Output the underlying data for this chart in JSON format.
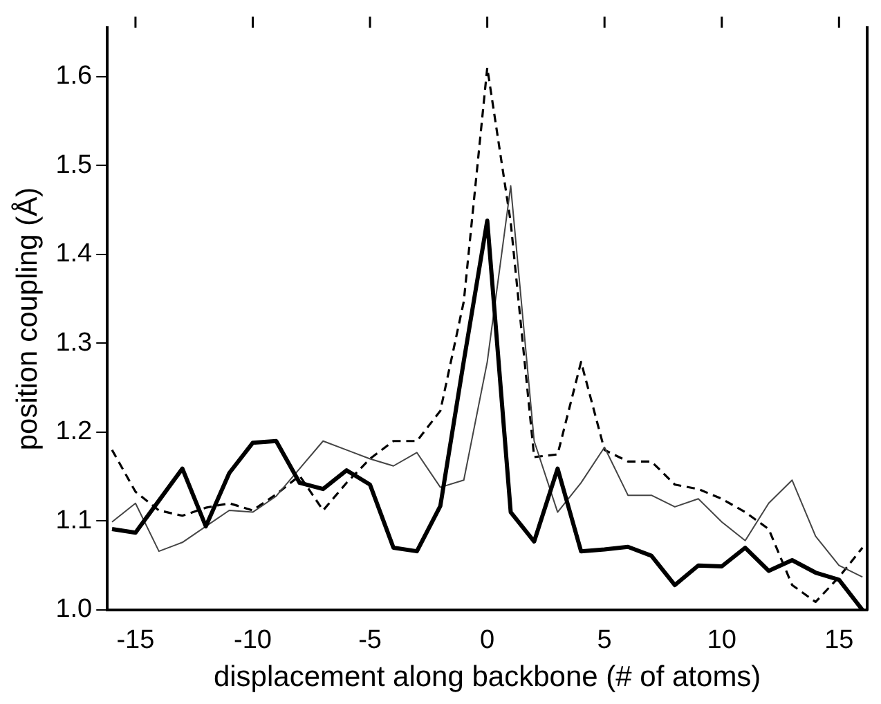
{
  "chart_data": {
    "type": "line",
    "xlabel": "displacement along backbone (# of atoms)",
    "ylabel": "position coupling (Å)",
    "x": [
      -16,
      -15,
      -14,
      -13,
      -12,
      -11,
      -10,
      -9,
      -8,
      -7,
      -6,
      -5,
      -4,
      -3,
      -2,
      -1,
      0,
      1,
      2,
      3,
      4,
      5,
      6,
      7,
      8,
      9,
      10,
      11,
      12,
      13,
      14,
      15,
      16
    ],
    "xlim": [
      -16.2,
      16.2
    ],
    "xticks": [
      -15,
      -10,
      -5,
      0,
      5,
      10,
      15
    ],
    "ylim": [
      1.0,
      1.655
    ],
    "yticks": [
      {
        "value": 1.0,
        "label": "1.0"
      },
      1.1,
      1.2,
      1.3,
      1.4,
      1.5,
      1.6
    ],
    "grid": false,
    "legend": false,
    "marker": "none",
    "series": [
      {
        "color": "#000000",
        "line_style": "solid",
        "values": [
          1.091,
          1.087,
          1.123,
          1.159,
          1.094,
          1.154,
          1.188,
          1.19,
          1.143,
          1.136,
          1.157,
          1.141,
          1.07,
          1.066,
          1.117,
          1.28,
          1.438,
          1.11,
          1.077,
          1.159,
          1.066,
          1.068,
          1.071,
          1.061,
          1.028,
          1.05,
          1.049,
          1.07,
          1.044,
          1.056,
          1.042,
          1.034,
          1.0
        ]
      },
      {
        "color": "#444444",
        "line_style": "solid",
        "values": [
          1.099,
          1.12,
          1.066,
          1.076,
          1.094,
          1.112,
          1.11,
          1.128,
          1.159,
          1.19,
          1.18,
          1.17,
          1.162,
          1.177,
          1.138,
          1.146,
          1.279,
          1.477,
          1.19,
          1.11,
          1.143,
          1.183,
          1.129,
          1.129,
          1.116,
          1.125,
          1.099,
          1.078,
          1.12,
          1.146,
          1.083,
          1.05,
          1.037
        ]
      },
      {
        "color": "#000000",
        "line_style": "dashed",
        "values": [
          1.18,
          1.133,
          1.112,
          1.106,
          1.115,
          1.12,
          1.112,
          1.13,
          1.151,
          1.112,
          1.143,
          1.17,
          1.19,
          1.19,
          1.224,
          1.347,
          1.61,
          1.436,
          1.172,
          1.175,
          1.279,
          1.18,
          1.167,
          1.167,
          1.141,
          1.136,
          1.125,
          1.11,
          1.091,
          1.028,
          1.009,
          1.037,
          1.07
        ]
      }
    ]
  }
}
